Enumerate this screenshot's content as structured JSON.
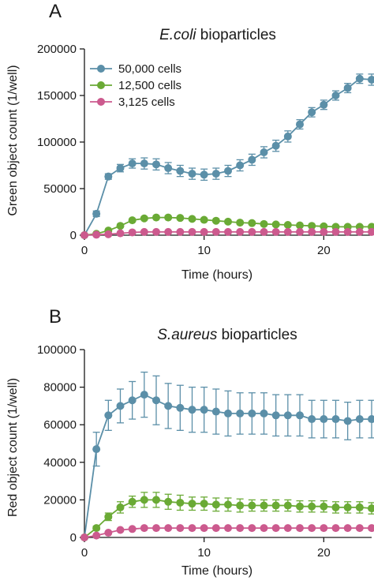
{
  "chart_data": [
    {
      "type": "line",
      "panel_label": "A",
      "title_italic": "E.coli",
      "title_rest": " bioparticles",
      "xlabel": "Time (hours)",
      "ylabel": "Green object count (1/well)",
      "xlim": [
        0,
        24
      ],
      "ylim": [
        0,
        200000
      ],
      "xticks": [
        0,
        10,
        20
      ],
      "xtick_labels": [
        "0",
        "10",
        "20"
      ],
      "yticks": [
        0,
        50000,
        100000,
        150000,
        200000
      ],
      "ytick_labels": [
        "0",
        "50000",
        "100000",
        "150000",
        "200000"
      ],
      "grid": false,
      "legend": "top-left",
      "x": [
        0,
        1,
        2,
        3,
        4,
        5,
        6,
        7,
        8,
        9,
        10,
        11,
        12,
        13,
        14,
        15,
        16,
        17,
        18,
        19,
        20,
        21,
        22,
        23,
        24
      ],
      "series": [
        {
          "name": "50,000 cells",
          "color": "#5b8fa8",
          "values": [
            0,
            23000,
            63000,
            72000,
            77000,
            77000,
            76000,
            72000,
            69000,
            66000,
            65000,
            66000,
            69000,
            75000,
            81000,
            89000,
            96000,
            106000,
            119000,
            132000,
            140000,
            150000,
            158000,
            168000,
            167000
          ],
          "errors": [
            0,
            3000,
            3000,
            4000,
            5000,
            6000,
            6000,
            6000,
            6000,
            6000,
            6000,
            6000,
            6000,
            6000,
            6000,
            6000,
            6000,
            6000,
            5000,
            5000,
            5000,
            5000,
            5000,
            5000,
            6000
          ]
        },
        {
          "name": "12,500 cells",
          "color": "#6aaa35",
          "values": [
            0,
            1500,
            5000,
            10000,
            16000,
            18000,
            19000,
            19000,
            18500,
            17500,
            16500,
            15500,
            14500,
            13500,
            13000,
            12000,
            11500,
            11000,
            10500,
            10000,
            9500,
            9000,
            9000,
            9000,
            9000
          ],
          "errors": [
            0,
            500,
            1000,
            1500,
            1500,
            1500,
            1500,
            1500,
            1500,
            1500,
            1500,
            1500,
            1500,
            1500,
            1500,
            1500,
            1500,
            1500,
            1500,
            1500,
            1500,
            1500,
            1500,
            1500,
            1500
          ]
        },
        {
          "name": "3,125 cells",
          "color": "#cc5a8e",
          "values": [
            0,
            500,
            1000,
            2000,
            3000,
            3500,
            3500,
            3500,
            3500,
            3500,
            3500,
            3500,
            3500,
            3500,
            3500,
            3500,
            3500,
            3500,
            3500,
            3500,
            3500,
            3500,
            3500,
            3500,
            3500
          ],
          "errors": [
            0,
            300,
            300,
            400,
            500,
            500,
            500,
            500,
            500,
            500,
            500,
            500,
            500,
            500,
            500,
            500,
            500,
            500,
            500,
            500,
            500,
            500,
            500,
            500,
            500
          ]
        }
      ]
    },
    {
      "type": "line",
      "panel_label": "B",
      "title_italic": "S.aureus",
      "title_rest": " bioparticles",
      "xlabel": "Time (hours)",
      "ylabel": "Red object count (1/well)",
      "xlim": [
        0,
        24
      ],
      "ylim": [
        0,
        100000
      ],
      "xticks": [
        0,
        10,
        20
      ],
      "xtick_labels": [
        "0",
        "10",
        "20"
      ],
      "yticks": [
        0,
        20000,
        40000,
        60000,
        80000,
        100000
      ],
      "ytick_labels": [
        "0",
        "20000",
        "40000",
        "60000",
        "80000",
        "100000"
      ],
      "grid": false,
      "x": [
        0,
        1,
        2,
        3,
        4,
        5,
        6,
        7,
        8,
        9,
        10,
        11,
        12,
        13,
        14,
        15,
        16,
        17,
        18,
        19,
        20,
        21,
        22,
        23,
        24
      ],
      "series": [
        {
          "color": "#5b8fa8",
          "values": [
            0,
            47000,
            65000,
            70000,
            73000,
            76000,
            73000,
            70000,
            69000,
            68000,
            68000,
            67000,
            66000,
            66000,
            66000,
            66000,
            65000,
            65000,
            65000,
            63000,
            63000,
            63000,
            62000,
            63000,
            63000
          ],
          "errors": [
            0,
            9000,
            8000,
            9000,
            10000,
            12000,
            13000,
            12000,
            12000,
            12000,
            12000,
            12000,
            12000,
            11000,
            11000,
            11000,
            11000,
            11000,
            11000,
            10000,
            10000,
            10000,
            10000,
            10000,
            10000
          ]
        },
        {
          "color": "#6aaa35",
          "values": [
            0,
            5000,
            11000,
            16000,
            19000,
            20000,
            20000,
            19000,
            18500,
            18000,
            18000,
            17500,
            17500,
            17000,
            17000,
            17000,
            17000,
            17000,
            16500,
            16500,
            16500,
            16000,
            16000,
            16000,
            15500
          ],
          "errors": [
            0,
            1000,
            2000,
            3000,
            3000,
            4000,
            4000,
            4000,
            4000,
            3500,
            3500,
            3500,
            3500,
            3500,
            3000,
            3000,
            3000,
            3000,
            3000,
            3000,
            3000,
            3000,
            3000,
            3000,
            3000
          ]
        },
        {
          "color": "#cc5a8e",
          "values": [
            0,
            1000,
            2500,
            4000,
            4500,
            5000,
            5000,
            5000,
            5000,
            5000,
            5000,
            5000,
            5000,
            5000,
            5000,
            5000,
            5000,
            5000,
            5000,
            5000,
            5000,
            5000,
            5000,
            5000,
            5000
          ],
          "errors": [
            0,
            300,
            500,
            500,
            500,
            500,
            500,
            500,
            500,
            500,
            500,
            500,
            500,
            500,
            500,
            500,
            500,
            500,
            500,
            500,
            500,
            500,
            500,
            500,
            500
          ]
        }
      ]
    }
  ]
}
